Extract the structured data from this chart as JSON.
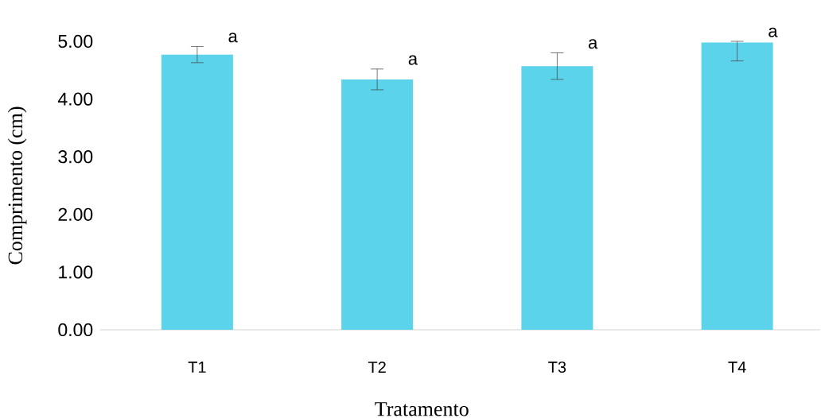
{
  "chart_data": {
    "type": "bar",
    "xlabel": "Tratamento",
    "ylabel": "Comprimento (cm)",
    "categories": [
      "T1",
      "T2",
      "T3",
      "T4"
    ],
    "values": [
      4.77,
      4.34,
      4.57,
      4.98
    ],
    "errors": [
      0.14,
      0.18,
      0.23,
      [
        4.66,
        5.0
      ]
    ],
    "color": "#5bd3ea",
    "ylim": [
      0,
      5
    ],
    "yticks": [
      {
        "value": 0,
        "label": "0.00"
      },
      {
        "value": 1,
        "label": "1.00"
      },
      {
        "value": 2,
        "label": "2.00"
      },
      {
        "value": 3,
        "label": "3.00"
      },
      {
        "value": 4,
        "label": "4.00"
      },
      {
        "value": 5,
        "label": "5.00"
      }
    ],
    "annotations": [
      {
        "text": "a",
        "x": "T1",
        "y": 4.91
      },
      {
        "text": "a",
        "x": "T2",
        "y": 4.52
      },
      {
        "text": "a",
        "x": "T3",
        "y": 4.8
      },
      {
        "text": "a",
        "x": "T4",
        "y": 5.0
      }
    ]
  }
}
